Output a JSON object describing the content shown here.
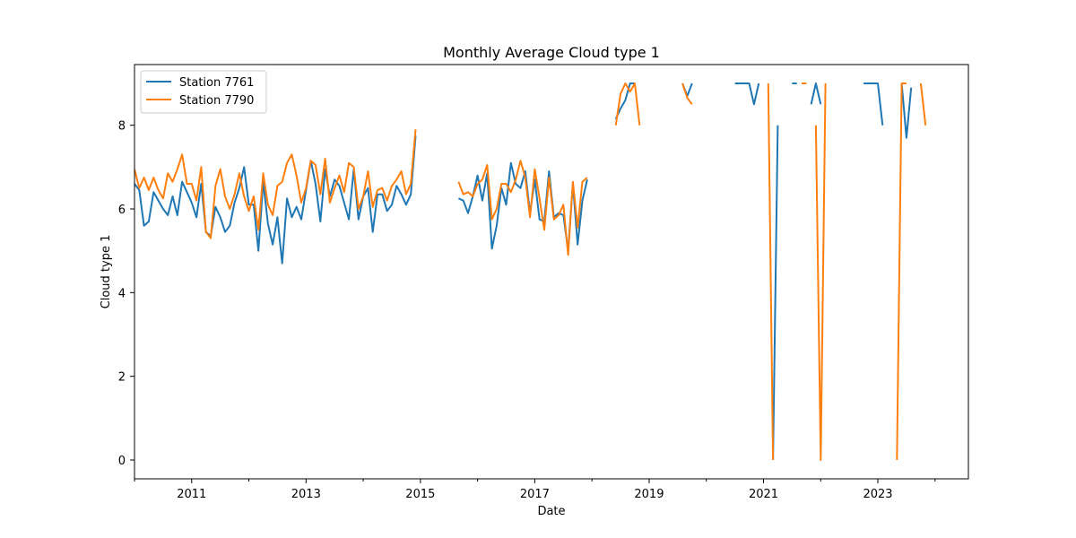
{
  "chart_data": {
    "type": "line",
    "title": "Monthly Average Cloud type 1",
    "xlabel": "Date",
    "ylabel": "Cloud type 1",
    "xlim": [
      "2010-01",
      "2024-08"
    ],
    "ylim": [
      -0.45,
      9.45
    ],
    "x_ticks": [
      "2011",
      "2013",
      "2015",
      "2017",
      "2019",
      "2021",
      "2023"
    ],
    "y_ticks": [
      0,
      2,
      4,
      6,
      8
    ],
    "grid": false,
    "legend_position": "upper left",
    "colors": {
      "station_7761": "#1f77b4",
      "station_7790": "#ff7f0e"
    },
    "series": [
      {
        "name": "Station 7761",
        "color": "#1f77b4",
        "points": [
          [
            "2010-01",
            6.6
          ],
          [
            "2010-02",
            6.45
          ],
          [
            "2010-03",
            5.6
          ],
          [
            "2010-04",
            5.7
          ],
          [
            "2010-05",
            6.4
          ],
          [
            "2010-06",
            6.2
          ],
          [
            "2010-07",
            6.0
          ],
          [
            "2010-08",
            5.85
          ],
          [
            "2010-09",
            6.3
          ],
          [
            "2010-10",
            5.85
          ],
          [
            "2010-11",
            6.65
          ],
          [
            "2010-12",
            6.4
          ],
          [
            "2011-01",
            6.15
          ],
          [
            "2011-02",
            5.8
          ],
          [
            "2011-03",
            6.6
          ],
          [
            "2011-04",
            5.45
          ],
          [
            "2011-05",
            5.35
          ],
          [
            "2011-06",
            6.05
          ],
          [
            "2011-07",
            5.8
          ],
          [
            "2011-08",
            5.45
          ],
          [
            "2011-09",
            5.6
          ],
          [
            "2011-10",
            6.15
          ],
          [
            "2011-11",
            6.5
          ],
          [
            "2011-12",
            7.0
          ],
          [
            "2012-01",
            6.1
          ],
          [
            "2012-02",
            6.1
          ],
          [
            "2012-03",
            5.0
          ],
          [
            "2012-04",
            6.65
          ],
          [
            "2012-05",
            5.65
          ],
          [
            "2012-06",
            5.15
          ],
          [
            "2012-07",
            5.8
          ],
          [
            "2012-08",
            4.7
          ],
          [
            "2012-09",
            6.25
          ],
          [
            "2012-10",
            5.8
          ],
          [
            "2012-11",
            6.05
          ],
          [
            "2012-12",
            5.75
          ],
          [
            "2013-01",
            6.45
          ],
          [
            "2013-02",
            7.15
          ],
          [
            "2013-03",
            6.6
          ],
          [
            "2013-04",
            5.7
          ],
          [
            "2013-05",
            6.95
          ],
          [
            "2013-06",
            6.3
          ],
          [
            "2013-07",
            6.7
          ],
          [
            "2013-08",
            6.55
          ],
          [
            "2013-09",
            6.15
          ],
          [
            "2013-10",
            5.75
          ],
          [
            "2013-11",
            6.95
          ],
          [
            "2013-12",
            5.75
          ],
          [
            "2014-01",
            6.3
          ],
          [
            "2014-02",
            6.5
          ],
          [
            "2014-03",
            5.45
          ],
          [
            "2014-04",
            6.35
          ],
          [
            "2014-05",
            6.35
          ],
          [
            "2014-06",
            5.95
          ],
          [
            "2014-07",
            6.1
          ],
          [
            "2014-08",
            6.55
          ],
          [
            "2014-09",
            6.35
          ],
          [
            "2014-10",
            6.1
          ],
          [
            "2014-11",
            6.35
          ],
          [
            "2014-12",
            7.75
          ],
          null,
          [
            "2015-09",
            6.25
          ],
          [
            "2015-10",
            6.2
          ],
          [
            "2015-11",
            5.9
          ],
          [
            "2015-12",
            6.3
          ],
          [
            "2016-01",
            6.8
          ],
          [
            "2016-02",
            6.2
          ],
          [
            "2016-03",
            6.85
          ],
          [
            "2016-04",
            5.05
          ],
          [
            "2016-05",
            5.6
          ],
          [
            "2016-06",
            6.5
          ],
          [
            "2016-07",
            6.1
          ],
          [
            "2016-08",
            7.1
          ],
          [
            "2016-09",
            6.6
          ],
          [
            "2016-10",
            6.5
          ],
          [
            "2016-11",
            6.9
          ],
          [
            "2016-12",
            5.9
          ],
          [
            "2017-01",
            6.7
          ],
          [
            "2017-02",
            5.75
          ],
          [
            "2017-03",
            5.7
          ],
          [
            "2017-04",
            6.9
          ],
          [
            "2017-05",
            5.8
          ],
          [
            "2017-06",
            5.9
          ],
          [
            "2017-07",
            5.85
          ],
          [
            "2017-08",
            5.0
          ],
          [
            "2017-09",
            6.6
          ],
          [
            "2017-10",
            5.15
          ],
          [
            "2017-11",
            6.2
          ],
          [
            "2017-12",
            6.7
          ],
          null,
          [
            "2018-06",
            8.15
          ],
          [
            "2018-07",
            8.4
          ],
          [
            "2018-08",
            8.6
          ],
          [
            "2018-09",
            9.0
          ],
          [
            "2018-10",
            9.0
          ],
          null,
          [
            "2019-08",
            9.0
          ],
          [
            "2019-09",
            8.7
          ],
          [
            "2019-10",
            9.0
          ],
          null,
          [
            "2020-07",
            9.0
          ],
          [
            "2020-08",
            9.0
          ],
          [
            "2020-09",
            9.0
          ],
          [
            "2020-10",
            9.0
          ],
          [
            "2020-11",
            8.5
          ],
          [
            "2020-12",
            9.0
          ],
          null,
          [
            "2021-03",
            0.0
          ],
          [
            "2021-04",
            8.0
          ],
          null,
          [
            "2021-07",
            9.0
          ],
          [
            "2021-08",
            9.0
          ],
          null,
          [
            "2021-11",
            8.5
          ],
          [
            "2021-12",
            9.0
          ],
          [
            "2022-01",
            8.5
          ],
          null,
          [
            "2022-10",
            9.0
          ],
          [
            "2022-11",
            9.0
          ],
          [
            "2022-12",
            9.0
          ],
          [
            "2023-01",
            9.0
          ],
          [
            "2023-02",
            8.0
          ],
          null,
          [
            "2023-06",
            9.0
          ],
          [
            "2023-07",
            7.7
          ],
          [
            "2023-08",
            8.9
          ]
        ]
      },
      {
        "name": "Station 7790",
        "color": "#ff7f0e",
        "points": [
          [
            "2010-01",
            6.95
          ],
          [
            "2010-02",
            6.5
          ],
          [
            "2010-03",
            6.75
          ],
          [
            "2010-04",
            6.45
          ],
          [
            "2010-05",
            6.75
          ],
          [
            "2010-06",
            6.45
          ],
          [
            "2010-07",
            6.25
          ],
          [
            "2010-08",
            6.85
          ],
          [
            "2010-09",
            6.65
          ],
          [
            "2010-10",
            6.95
          ],
          [
            "2010-11",
            7.3
          ],
          [
            "2010-12",
            6.6
          ],
          [
            "2011-01",
            6.6
          ],
          [
            "2011-02",
            6.2
          ],
          [
            "2011-03",
            7.0
          ],
          [
            "2011-04",
            5.45
          ],
          [
            "2011-05",
            5.3
          ],
          [
            "2011-06",
            6.55
          ],
          [
            "2011-07",
            6.95
          ],
          [
            "2011-08",
            6.3
          ],
          [
            "2011-09",
            6.0
          ],
          [
            "2011-10",
            6.35
          ],
          [
            "2011-11",
            6.85
          ],
          [
            "2011-12",
            6.3
          ],
          [
            "2012-01",
            5.95
          ],
          [
            "2012-02",
            6.3
          ],
          [
            "2012-03",
            5.5
          ],
          [
            "2012-04",
            6.85
          ],
          [
            "2012-05",
            6.1
          ],
          [
            "2012-06",
            5.85
          ],
          [
            "2012-07",
            6.55
          ],
          [
            "2012-08",
            6.65
          ],
          [
            "2012-09",
            7.1
          ],
          [
            "2012-10",
            7.3
          ],
          [
            "2012-11",
            6.8
          ],
          [
            "2012-12",
            6.15
          ],
          [
            "2013-01",
            6.5
          ],
          [
            "2013-02",
            7.15
          ],
          [
            "2013-03",
            7.05
          ],
          [
            "2013-04",
            6.35
          ],
          [
            "2013-05",
            7.2
          ],
          [
            "2013-06",
            6.15
          ],
          [
            "2013-07",
            6.5
          ],
          [
            "2013-08",
            6.8
          ],
          [
            "2013-09",
            6.4
          ],
          [
            "2013-10",
            7.1
          ],
          [
            "2013-11",
            7.0
          ],
          [
            "2013-12",
            6.0
          ],
          [
            "2014-01",
            6.3
          ],
          [
            "2014-02",
            6.9
          ],
          [
            "2014-03",
            6.05
          ],
          [
            "2014-04",
            6.45
          ],
          [
            "2014-05",
            6.5
          ],
          [
            "2014-06",
            6.2
          ],
          [
            "2014-07",
            6.55
          ],
          [
            "2014-08",
            6.7
          ],
          [
            "2014-09",
            6.9
          ],
          [
            "2014-10",
            6.35
          ],
          [
            "2014-11",
            6.6
          ],
          [
            "2014-12",
            7.9
          ],
          null,
          [
            "2015-09",
            6.65
          ],
          [
            "2015-10",
            6.35
          ],
          [
            "2015-11",
            6.4
          ],
          [
            "2015-12",
            6.3
          ],
          [
            "2016-01",
            6.6
          ],
          [
            "2016-02",
            6.7
          ],
          [
            "2016-03",
            7.05
          ],
          [
            "2016-04",
            5.75
          ],
          [
            "2016-05",
            6.0
          ],
          [
            "2016-06",
            6.6
          ],
          [
            "2016-07",
            6.6
          ],
          [
            "2016-08",
            6.4
          ],
          [
            "2016-09",
            6.7
          ],
          [
            "2016-10",
            7.15
          ],
          [
            "2016-11",
            6.75
          ],
          [
            "2016-12",
            5.8
          ],
          [
            "2017-01",
            6.95
          ],
          [
            "2017-02",
            6.25
          ],
          [
            "2017-03",
            5.5
          ],
          [
            "2017-04",
            6.75
          ],
          [
            "2017-05",
            5.75
          ],
          [
            "2017-06",
            5.85
          ],
          [
            "2017-07",
            6.1
          ],
          [
            "2017-08",
            4.9
          ],
          [
            "2017-09",
            6.65
          ],
          [
            "2017-10",
            5.55
          ],
          [
            "2017-11",
            6.65
          ],
          [
            "2017-12",
            6.75
          ],
          null,
          [
            "2018-06",
            8.0
          ],
          [
            "2018-07",
            8.75
          ],
          [
            "2018-08",
            9.0
          ],
          [
            "2018-09",
            8.8
          ],
          [
            "2018-10",
            9.0
          ],
          [
            "2018-11",
            8.0
          ],
          null,
          [
            "2019-08",
            9.0
          ],
          [
            "2019-09",
            8.65
          ],
          [
            "2019-10",
            8.5
          ],
          null,
          [
            "2021-02",
            9.0
          ],
          [
            "2021-03",
            0.0
          ],
          null,
          [
            "2021-09",
            9.0
          ],
          [
            "2021-10",
            9.0
          ],
          null,
          [
            "2021-12",
            8.0
          ],
          [
            "2022-01",
            0.0
          ],
          [
            "2022-02",
            9.0
          ],
          null,
          [
            "2023-05",
            0.0
          ],
          [
            "2023-06",
            9.0
          ],
          [
            "2023-07",
            9.0
          ],
          null,
          [
            "2023-10",
            9.0
          ],
          [
            "2023-11",
            8.0
          ]
        ]
      }
    ]
  }
}
